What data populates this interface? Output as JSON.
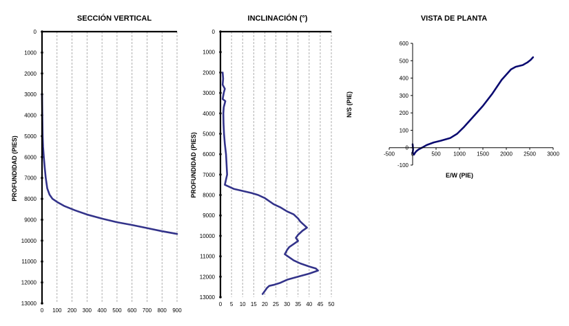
{
  "chart_data": [
    {
      "type": "line",
      "title": "SECCIÓN VERTICAL",
      "ylabel": "PROFUNDIDAD (PIES)",
      "xlabel": "",
      "xlim": [
        0,
        900
      ],
      "ylim": [
        13000,
        0
      ],
      "x_ticks": [
        "0",
        "100",
        "200",
        "300",
        "400",
        "500",
        "600",
        "700",
        "800",
        "900"
      ],
      "y_ticks": [
        "0",
        "1000",
        "2000",
        "3000",
        "4000",
        "5000",
        "6000",
        "7000",
        "8000",
        "9000",
        "10000",
        "11000",
        "12000",
        "13000"
      ],
      "series": [
        {
          "x": [
            0,
            2,
            4,
            7,
            12,
            18,
            25,
            35,
            50,
            70,
            100,
            150,
            220,
            300,
            400,
            500,
            600,
            700,
            800,
            900
          ],
          "y": [
            3000,
            4000,
            5000,
            5500,
            6000,
            6500,
            7000,
            7500,
            7800,
            8000,
            8150,
            8350,
            8550,
            8750,
            8950,
            9120,
            9250,
            9400,
            9550,
            9680
          ]
        }
      ]
    },
    {
      "type": "line",
      "title": "INCLINACIÓN (°)",
      "ylabel": "PROFUNDIDAD (PIES)",
      "xlabel": "",
      "xlim": [
        0,
        50
      ],
      "ylim": [
        13000,
        0
      ],
      "x_ticks": [
        "0",
        "5",
        "10",
        "15",
        "20",
        "25",
        "30",
        "35",
        "40",
        "45",
        "50"
      ],
      "y_ticks": [
        "0",
        "1000",
        "2000",
        "3000",
        "4000",
        "5000",
        "6000",
        "7000",
        "8000",
        "9000",
        "10000",
        "11000",
        "12000",
        "13000"
      ],
      "series": [
        {
          "x": [
            1,
            1.2,
            1,
            2,
            1.5,
            1,
            2.2,
            1.5,
            1.3,
            1.4,
            1.6,
            2,
            2.5,
            3,
            2,
            6,
            10,
            14,
            17,
            20,
            22,
            24,
            27,
            30,
            33,
            35,
            36,
            37,
            38,
            39,
            37,
            36,
            35,
            34,
            35,
            33,
            31,
            30,
            29,
            31,
            33,
            36,
            40,
            43,
            44,
            40,
            35,
            30,
            27,
            24,
            22,
            21,
            20,
            19
          ],
          "y": [
            2000,
            2300,
            2600,
            2800,
            3000,
            3300,
            3400,
            3700,
            4000,
            4500,
            5000,
            5500,
            6000,
            7000,
            7500,
            7700,
            7800,
            7900,
            8000,
            8150,
            8300,
            8450,
            8600,
            8800,
            8950,
            9150,
            9300,
            9400,
            9500,
            9600,
            9750,
            9850,
            9950,
            10100,
            10250,
            10400,
            10550,
            10700,
            10900,
            11050,
            11200,
            11350,
            11500,
            11600,
            11700,
            11850,
            12000,
            12150,
            12300,
            12400,
            12450,
            12550,
            12700,
            12850
          ]
        }
      ]
    },
    {
      "type": "line",
      "title": "VISTA DE PLANTA",
      "xlabel": "E/W (PIE)",
      "ylabel": "N/S (PIE)",
      "xlim": [
        -500,
        3000
      ],
      "ylim": [
        -100,
        600
      ],
      "x_ticks": [
        "-500",
        "0",
        "500",
        "1000",
        "1500",
        "2000",
        "2500",
        "3000"
      ],
      "y_ticks": [
        "-100",
        "0",
        "100",
        "200",
        "300",
        "400",
        "500",
        "600"
      ],
      "series": [
        {
          "x": [
            0,
            10,
            0,
            30,
            50,
            80,
            130,
            200,
            300,
            450,
            600,
            800,
            950,
            1100,
            1300,
            1500,
            1700,
            1900,
            2100,
            2200,
            2350,
            2450,
            2520,
            2570
          ],
          "y": [
            20,
            -10,
            -30,
            -40,
            -30,
            -20,
            -10,
            0,
            15,
            30,
            40,
            55,
            80,
            120,
            180,
            240,
            310,
            390,
            450,
            465,
            475,
            490,
            505,
            520
          ]
        }
      ]
    }
  ]
}
